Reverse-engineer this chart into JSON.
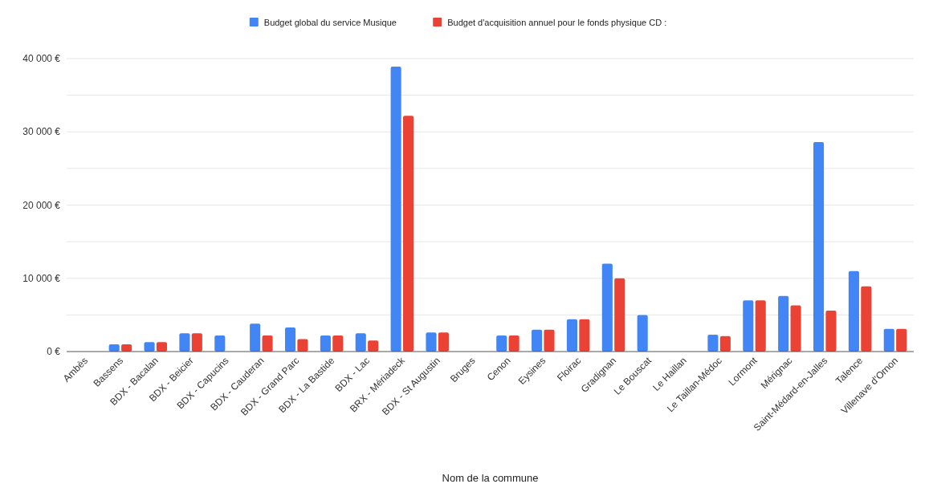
{
  "chart_data": {
    "type": "bar",
    "xlabel": "Nom de la commune",
    "categories": [
      "Ambès",
      "Bassens",
      "BDX - Bacalan",
      "BDX - Beicier",
      "BDX - Capucins",
      "BDX - Cauderan",
      "BDX - Grand Parc",
      "BDX - La Bastide",
      "BDX - Lac",
      "BRX - Mériadeck",
      "BDX - St Augustin",
      "Bruges",
      "Cenon",
      "Eysines",
      "Floirac",
      "Gradignan",
      "Le Bouscat",
      "Le Haillan",
      "Le Taillan-Médoc",
      "Lormont",
      "Mérignac",
      "Saint-Médard-en-Jalles",
      "Talence",
      "Villenave d'Ornon"
    ],
    "series": [
      {
        "name": "Budget global du service Musique",
        "color": "#4285f4",
        "values": [
          null,
          1000,
          1300,
          2500,
          2200,
          3800,
          3300,
          2200,
          2500,
          38900,
          2600,
          null,
          2200,
          3000,
          4400,
          12000,
          5000,
          null,
          2300,
          7000,
          7600,
          28600,
          11000,
          3100
        ]
      },
      {
        "name": "Budget d'acquisition annuel pour le fonds physique CD :",
        "color": "#ea4335",
        "values": [
          null,
          1000,
          1300,
          2500,
          null,
          2200,
          1700,
          2200,
          1500,
          32200,
          2600,
          null,
          2200,
          3000,
          4400,
          10000,
          null,
          null,
          2100,
          7000,
          6300,
          5600,
          8900,
          3100
        ]
      }
    ],
    "ylim": [
      0,
      40000
    ],
    "yticks": [
      {
        "value": 0,
        "label": "0 €"
      },
      {
        "value": 5000,
        "label": null
      },
      {
        "value": 10000,
        "label": "10 000 €"
      },
      {
        "value": 15000,
        "label": null
      },
      {
        "value": 20000,
        "label": "20 000 €"
      },
      {
        "value": 25000,
        "label": null
      },
      {
        "value": 30000,
        "label": "30 000 €"
      },
      {
        "value": 35000,
        "label": null
      },
      {
        "value": 40000,
        "label": "40 000 €"
      }
    ],
    "grid": "y",
    "legend": "top"
  }
}
